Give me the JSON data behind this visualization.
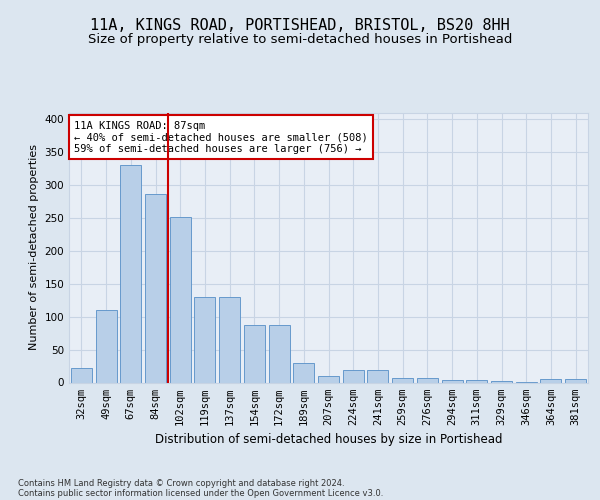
{
  "title": "11A, KINGS ROAD, PORTISHEAD, BRISTOL, BS20 8HH",
  "subtitle": "Size of property relative to semi-detached houses in Portishead",
  "xlabel": "Distribution of semi-detached houses by size in Portishead",
  "ylabel": "Number of semi-detached properties",
  "footnote1": "Contains HM Land Registry data © Crown copyright and database right 2024.",
  "footnote2": "Contains public sector information licensed under the Open Government Licence v3.0.",
  "categories": [
    "32sqm",
    "49sqm",
    "67sqm",
    "84sqm",
    "102sqm",
    "119sqm",
    "137sqm",
    "154sqm",
    "172sqm",
    "189sqm",
    "207sqm",
    "224sqm",
    "241sqm",
    "259sqm",
    "276sqm",
    "294sqm",
    "311sqm",
    "329sqm",
    "346sqm",
    "364sqm",
    "381sqm"
  ],
  "values": [
    22,
    110,
    330,
    287,
    252,
    130,
    130,
    88,
    88,
    30,
    10,
    19,
    19,
    7,
    7,
    4,
    4,
    2,
    1,
    5,
    5
  ],
  "bar_color": "#b8cfe8",
  "bar_edge_color": "#6699cc",
  "grid_color": "#c8d4e4",
  "vline_x": 3.5,
  "vline_color": "#cc0000",
  "annotation_text": "11A KINGS ROAD: 87sqm\n← 40% of semi-detached houses are smaller (508)\n59% of semi-detached houses are larger (756) →",
  "annotation_box_facecolor": "#ffffff",
  "annotation_box_edgecolor": "#cc0000",
  "ylim": [
    0,
    410
  ],
  "yticks": [
    0,
    50,
    100,
    150,
    200,
    250,
    300,
    350,
    400
  ],
  "fig_bg_color": "#dce6f0",
  "axes_bg_color": "#e8eef6",
  "title_fontsize": 11,
  "subtitle_fontsize": 9.5,
  "xlabel_fontsize": 8.5,
  "ylabel_fontsize": 8,
  "tick_fontsize": 7.5,
  "annot_fontsize": 7.5,
  "footnote_fontsize": 6
}
